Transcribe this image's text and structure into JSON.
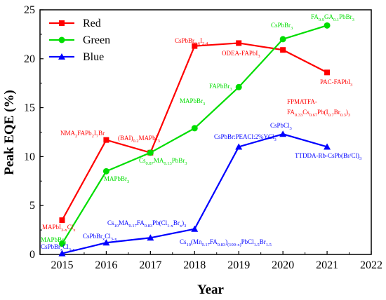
{
  "chart_data": {
    "type": "line",
    "xlabel": "Year",
    "ylabel": "Peak EQE (%)",
    "xlim": [
      2014.5,
      2022
    ],
    "ylim": [
      0,
      25
    ],
    "xticks": [
      2015,
      2016,
      2017,
      2018,
      2019,
      2020,
      2021,
      2022
    ],
    "yticks": [
      0,
      5,
      10,
      15,
      20,
      25
    ],
    "legend_position": "top-left",
    "series": [
      {
        "name": "Red",
        "color": "#ff0000",
        "marker": "square",
        "x": [
          2015,
          2016,
          2017,
          2018,
          2019,
          2020,
          2021
        ],
        "y": [
          3.5,
          11.7,
          10.4,
          21.3,
          21.6,
          20.9,
          18.6
        ]
      },
      {
        "name": "Green",
        "color": "#00dd00",
        "marker": "circle",
        "x": [
          2015,
          2016,
          2017,
          2018,
          2019,
          2020,
          2021
        ],
        "y": [
          1.1,
          8.5,
          10.4,
          12.9,
          17.1,
          22.0,
          23.4
        ]
      },
      {
        "name": "Blue",
        "color": "#0000ff",
        "marker": "triangle",
        "x": [
          2015,
          2016,
          2017,
          2018,
          2019,
          2020,
          2021
        ],
        "y": [
          0.1,
          1.2,
          1.7,
          2.6,
          11.0,
          12.3,
          11.0
        ]
      }
    ],
    "annotations": [
      {
        "series": "Red",
        "parts": [
          [
            "MAPbI",
            ""
          ],
          [
            "3-x",
            "sub"
          ],
          [
            "Cl",
            ""
          ],
          [
            "x",
            "sub"
          ]
        ]
      },
      {
        "series": "Red",
        "parts": [
          [
            "NMA",
            ""
          ],
          [
            "2",
            "sub"
          ],
          [
            "FAPb",
            ""
          ],
          [
            "2",
            "sub"
          ],
          [
            "I",
            ""
          ],
          [
            "7",
            "sub"
          ],
          [
            "Br",
            ""
          ]
        ]
      },
      {
        "series": "Red",
        "parts": [
          [
            "(BAI)",
            ""
          ],
          [
            "0.2",
            "sub"
          ],
          [
            "MAPbI",
            ""
          ],
          [
            "3",
            "sub"
          ]
        ]
      },
      {
        "series": "Red",
        "parts": [
          [
            "CsPbBr",
            ""
          ],
          [
            "0.6",
            "sub"
          ],
          [
            "I",
            ""
          ],
          [
            "2.4",
            "sub"
          ]
        ]
      },
      {
        "series": "Red",
        "parts": [
          [
            "ODEA-FAPbI",
            ""
          ],
          [
            "3",
            "sub"
          ]
        ]
      },
      {
        "series": "Red",
        "parts": [
          [
            "FPMATFA-",
            ""
          ]
        ]
      },
      {
        "series": "Red",
        "parts": [
          [
            "FA",
            ""
          ],
          [
            "0.33",
            "sub"
          ],
          [
            "Cs",
            ""
          ],
          [
            "0.67",
            "sub"
          ],
          [
            "Pb(I",
            ""
          ],
          [
            "0.7",
            "sub"
          ],
          [
            "Br",
            ""
          ],
          [
            "0.3",
            "sub"
          ],
          [
            ")",
            ""
          ],
          [
            "3",
            "sub"
          ]
        ]
      },
      {
        "series": "Red",
        "parts": [
          [
            "PAC-FAPbI",
            ""
          ],
          [
            "3",
            "sub"
          ]
        ]
      },
      {
        "series": "Green",
        "parts": [
          [
            "MAPbBr",
            ""
          ],
          [
            "3",
            "sub"
          ]
        ]
      },
      {
        "series": "Green",
        "parts": [
          [
            "MAPbBr",
            ""
          ],
          [
            "3",
            "sub"
          ]
        ]
      },
      {
        "series": "Green",
        "parts": [
          [
            "Cs",
            ""
          ],
          [
            "0.87",
            "sub"
          ],
          [
            "MA",
            ""
          ],
          [
            "0.13",
            "sub"
          ],
          [
            "PbBr",
            ""
          ],
          [
            "3",
            "sub"
          ]
        ]
      },
      {
        "series": "Green",
        "parts": [
          [
            "MAPbBr",
            ""
          ],
          [
            "3",
            "sub"
          ]
        ]
      },
      {
        "series": "Green",
        "parts": [
          [
            "FAPbBr",
            ""
          ],
          [
            "3",
            "sub"
          ]
        ]
      },
      {
        "series": "Green",
        "parts": [
          [
            "CsPbBr",
            ""
          ],
          [
            "3",
            "sub"
          ]
        ]
      },
      {
        "series": "Green",
        "parts": [
          [
            "FA",
            ""
          ],
          [
            "0.9",
            "sub"
          ],
          [
            "GA",
            ""
          ],
          [
            "0.1",
            "sub"
          ],
          [
            "PbBr",
            ""
          ],
          [
            "3",
            "sub"
          ]
        ]
      },
      {
        "series": "Blue",
        "parts": [
          [
            "CsPbBr",
            ""
          ],
          [
            "x",
            "sub"
          ],
          [
            "Cl",
            ""
          ],
          [
            "3-x",
            "sub"
          ]
        ]
      },
      {
        "series": "Blue",
        "parts": [
          [
            "CsPbBr",
            ""
          ],
          [
            "x",
            "sub"
          ],
          [
            "Cl",
            ""
          ],
          [
            "3-x",
            "sub"
          ]
        ]
      },
      {
        "series": "Blue",
        "parts": [
          [
            "Cs",
            ""
          ],
          [
            "10",
            "sub"
          ],
          [
            "MA",
            ""
          ],
          [
            "0.17",
            "sub"
          ],
          [
            "FA",
            ""
          ],
          [
            "0.83",
            "sub"
          ],
          [
            "Pb(Cl",
            ""
          ],
          [
            "1-x",
            "sub"
          ],
          [
            "Br",
            ""
          ],
          [
            "x",
            "sub"
          ],
          [
            ")",
            ""
          ],
          [
            "3",
            "sub"
          ]
        ]
      },
      {
        "series": "Blue",
        "parts": [
          [
            "Cs",
            ""
          ],
          [
            "10",
            "sub"
          ],
          [
            "(Mn",
            ""
          ],
          [
            "0.17",
            "sub"
          ],
          [
            "FA",
            ""
          ],
          [
            "0.83",
            "sub"
          ],
          [
            ")",
            ""
          ],
          [
            "(100-x)",
            "sub"
          ],
          [
            "PbCl",
            ""
          ],
          [
            "1.5",
            "sub"
          ],
          [
            "Br",
            ""
          ],
          [
            "1.5",
            "sub"
          ]
        ]
      },
      {
        "series": "Blue",
        "parts": [
          [
            "CsPbBr:PEACl:2%YCl",
            ""
          ],
          [
            "3",
            "sub"
          ]
        ]
      },
      {
        "series": "Blue",
        "parts": [
          [
            "CsPbCl",
            ""
          ],
          [
            "3",
            "sub"
          ]
        ]
      },
      {
        "series": "Blue",
        "parts": [
          [
            "TTDDA-Rb-CsPb(Br/Cl)",
            ""
          ],
          [
            "3",
            "sub"
          ]
        ]
      }
    ]
  }
}
